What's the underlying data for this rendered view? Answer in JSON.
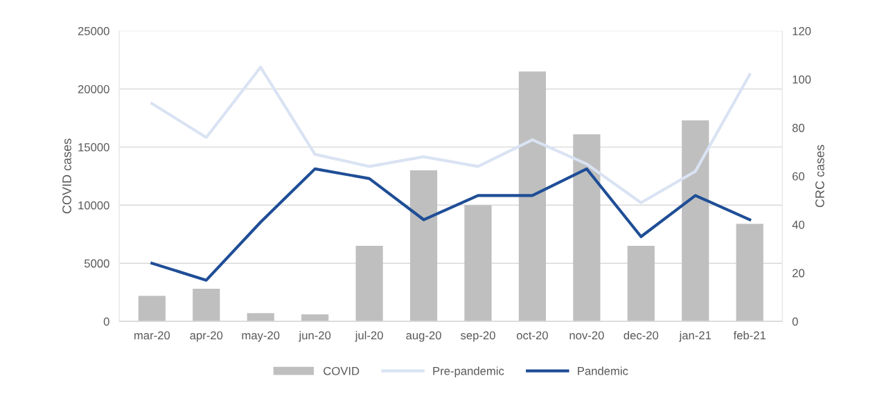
{
  "chart_data": {
    "type": "bar",
    "categories": [
      "mar-20",
      "apr-20",
      "may-20",
      "jun-20",
      "jul-20",
      "aug-20",
      "sep-20",
      "oct-20",
      "nov-20",
      "dec-20",
      "jan-21",
      "feb-21"
    ],
    "series": [
      {
        "name": "COVID",
        "color": "#bfbfbf",
        "values": [
          2200,
          2800,
          700,
          600,
          6500,
          13000,
          10000,
          21500,
          16100,
          6500,
          17300,
          8400
        ]
      },
      {
        "name": "Pre-pandemic",
        "type": "line",
        "axis": "y2",
        "color": "#dae3f3",
        "values": [
          90,
          76,
          105,
          69,
          64,
          68,
          64,
          75,
          65,
          49,
          62,
          102
        ]
      },
      {
        "name": "Pandemic",
        "type": "line",
        "axis": "y2",
        "color": "#1f4e96",
        "values": [
          24,
          17,
          41,
          63,
          59,
          42,
          52,
          52,
          63,
          35,
          52,
          42
        ]
      }
    ],
    "ylabel": "COVID cases",
    "y2label": "CRC cases",
    "ylim": [
      0,
      25000
    ],
    "yticks": [
      0,
      5000,
      10000,
      15000,
      20000,
      25000
    ],
    "y2lim": [
      0,
      120
    ],
    "y2ticks": [
      0,
      20,
      40,
      60,
      80,
      100,
      120
    ],
    "grid": "y",
    "legend": "bottom",
    "marker": "none",
    "line_style": "solid"
  }
}
